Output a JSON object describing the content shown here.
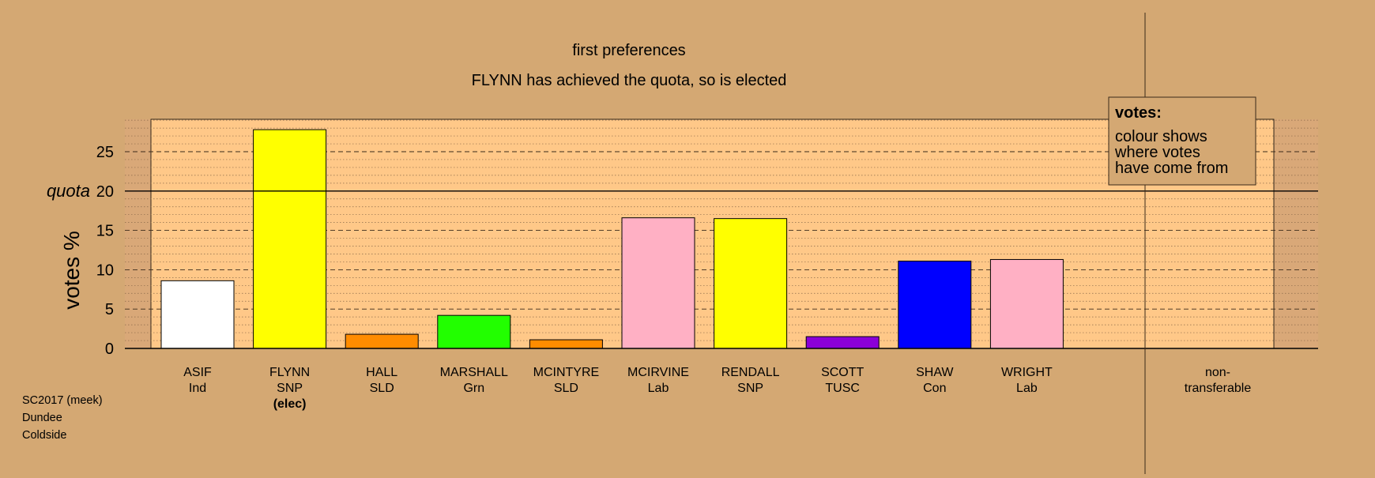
{
  "chart_data": {
    "type": "bar",
    "title": "first preferences",
    "subtitle": "FLYNN has achieved the quota, so is elected",
    "ylabel": "votes %",
    "ylim": [
      0,
      29
    ],
    "yticks": [
      0,
      5,
      10,
      15,
      20,
      25
    ],
    "quota": 20,
    "quota_label": "quota",
    "grid": true,
    "categories": [
      {
        "name": "ASIF",
        "party": "Ind",
        "value": 8.6,
        "color": "#FFFFFF",
        "note": ""
      },
      {
        "name": "FLYNN",
        "party": "SNP",
        "value": 27.8,
        "color": "#FFFF00",
        "note": "(elec)"
      },
      {
        "name": "HALL",
        "party": "SLD",
        "value": 1.8,
        "color": "#FF8C00",
        "note": ""
      },
      {
        "name": "MARSHALL",
        "party": "Grn",
        "value": 4.2,
        "color": "#22FF00",
        "note": ""
      },
      {
        "name": "MCINTYRE",
        "party": "SLD",
        "value": 1.1,
        "color": "#FF8C00",
        "note": ""
      },
      {
        "name": "MCIRVINE",
        "party": "Lab",
        "value": 16.6,
        "color": "#FFB0C4",
        "note": ""
      },
      {
        "name": "RENDALL",
        "party": "SNP",
        "value": 16.5,
        "color": "#FFFF00",
        "note": ""
      },
      {
        "name": "SCOTT",
        "party": "TUSC",
        "value": 1.5,
        "color": "#8B00D8",
        "note": ""
      },
      {
        "name": "SHAW",
        "party": "Con",
        "value": 11.1,
        "color": "#0000FF",
        "note": ""
      },
      {
        "name": "WRIGHT",
        "party": "Lab",
        "value": 11.3,
        "color": "#FFB0C4",
        "note": ""
      }
    ],
    "nontransferable": {
      "label_line1": "non-",
      "label_line2": "transferable",
      "value": 0
    },
    "legend": {
      "title": "votes:",
      "lines": [
        "colour shows",
        "where votes",
        "have come from"
      ],
      "placement": "top-right"
    }
  },
  "footer": {
    "line1": "SC2017 (meek)",
    "line2": "Dundee",
    "line3": "Coldside"
  },
  "colors": {
    "background": "#D4A873",
    "plot_area": "#FFC888",
    "plot_margin": "#D9A878"
  }
}
